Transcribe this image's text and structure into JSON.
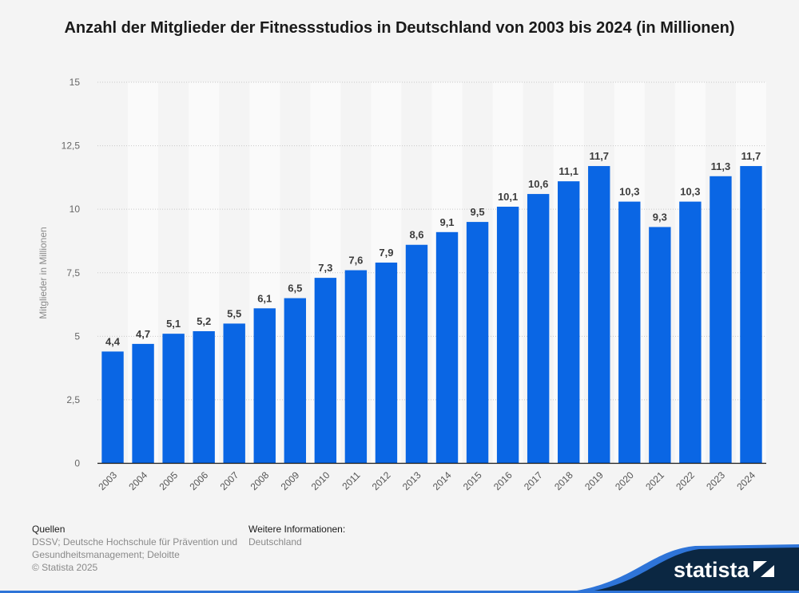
{
  "title": "Anzahl der Mitglieder der Fitnessstudios in Deutschland von 2003 bis 2024 (in Millionen)",
  "chart_data": {
    "type": "bar",
    "title": "Anzahl der Mitglieder der Fitnessstudios in Deutschland von 2003 bis 2024 (in Millionen)",
    "xlabel": "",
    "ylabel": "Mitglieder in Millionen",
    "categories": [
      "2003",
      "2004",
      "2005",
      "2006",
      "2007",
      "2008",
      "2009",
      "2010",
      "2011",
      "2012",
      "2013",
      "2014",
      "2015",
      "2016",
      "2017",
      "2018",
      "2019",
      "2020",
      "2021",
      "2022",
      "2023",
      "2024"
    ],
    "values": [
      4.4,
      4.7,
      5.1,
      5.2,
      5.5,
      6.1,
      6.5,
      7.3,
      7.6,
      7.9,
      8.6,
      9.1,
      9.5,
      10.1,
      10.6,
      11.1,
      11.7,
      10.3,
      9.3,
      10.3,
      11.3,
      11.7
    ],
    "value_labels": [
      "4,4",
      "4,7",
      "5,1",
      "5,2",
      "5,5",
      "6,1",
      "6,5",
      "7,3",
      "7,6",
      "7,9",
      "8,6",
      "9,1",
      "9,5",
      "10,1",
      "10,6",
      "11,1",
      "11,7",
      "10,3",
      "9,3",
      "10,3",
      "11,3",
      "11,7"
    ],
    "ylim": [
      0,
      15
    ],
    "yticks": [
      0,
      2.5,
      5,
      7.5,
      10,
      12.5,
      15
    ],
    "ytick_labels": [
      "0",
      "2,5",
      "5",
      "7,5",
      "10",
      "12,5",
      "15"
    ],
    "grid": true,
    "legend": "none",
    "bar_color": "#0a66e4"
  },
  "footer": {
    "sources_heading": "Quellen",
    "sources_text": "DSSV; Deutsche Hochschule für Prävention und Gesundheitsmanagement; Deloitte",
    "copyright": "© Statista 2025",
    "info_heading": "Weitere Informationen:",
    "info_text": "Deutschland"
  },
  "brand": {
    "logo_text": "statista",
    "dark_color": "#0b2742",
    "accent_color": "#2e74d8"
  }
}
